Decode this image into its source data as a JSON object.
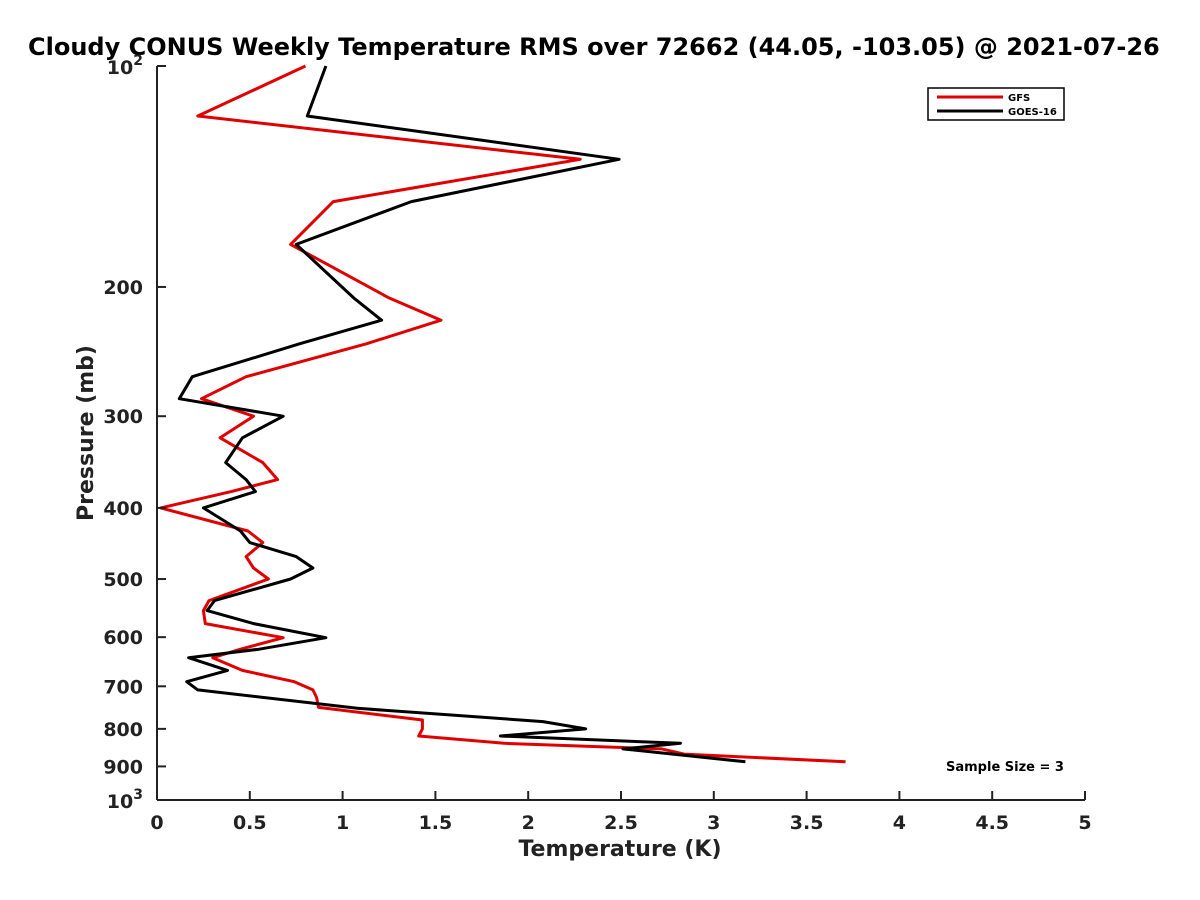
{
  "chart_data": {
    "type": "line",
    "title": "Cloudy CONUS Weekly Temperature RMS over 72662 (44.05, -103.05) @ 2021-07-26",
    "xlabel": "Temperature (K)",
    "ylabel": "Pressure (mb)",
    "xlim": [
      0,
      5
    ],
    "ylim": [
      100,
      1000
    ],
    "yscale": "log",
    "y_reversed": true,
    "xticks": [
      "0",
      "0.5",
      "1",
      "1.5",
      "2",
      "2.5",
      "3",
      "3.5",
      "4",
      "4.5",
      "5"
    ],
    "yticks": [
      {
        "value": 100,
        "base": "10",
        "exp": "2"
      },
      {
        "value": 200,
        "label": "200"
      },
      {
        "value": 300,
        "label": "300"
      },
      {
        "value": 400,
        "label": "400"
      },
      {
        "value": 500,
        "label": "500"
      },
      {
        "value": 600,
        "label": "600"
      },
      {
        "value": 700,
        "label": "700"
      },
      {
        "value": 800,
        "label": "800"
      },
      {
        "value": 900,
        "label": "900"
      },
      {
        "value": 1000,
        "base": "10",
        "exp": "3"
      }
    ],
    "legend_position": "top-right",
    "series": [
      {
        "name": "GFS",
        "color": "#e00000",
        "points": [
          [
            0.8,
            100
          ],
          [
            0.22,
            117
          ],
          [
            2.28,
            134
          ],
          [
            0.95,
            153
          ],
          [
            0.72,
            175
          ],
          [
            1.25,
            207
          ],
          [
            1.53,
            222
          ],
          [
            1.13,
            239
          ],
          [
            0.48,
            265
          ],
          [
            0.24,
            284
          ],
          [
            0.52,
            300
          ],
          [
            0.34,
            321
          ],
          [
            0.57,
            347
          ],
          [
            0.65,
            366
          ],
          [
            0.4,
            380
          ],
          [
            0.02,
            400
          ],
          [
            0.49,
            430
          ],
          [
            0.57,
            446
          ],
          [
            0.48,
            466
          ],
          [
            0.52,
            483
          ],
          [
            0.6,
            500
          ],
          [
            0.28,
            535
          ],
          [
            0.25,
            552
          ],
          [
            0.26,
            575
          ],
          [
            0.68,
            601
          ],
          [
            0.45,
            623
          ],
          [
            0.3,
            640
          ],
          [
            0.46,
            666
          ],
          [
            0.74,
            690
          ],
          [
            0.84,
            708
          ],
          [
            0.86,
            725
          ],
          [
            0.87,
            748
          ],
          [
            1.43,
            778
          ],
          [
            1.43,
            800
          ],
          [
            1.41,
            818
          ],
          [
            1.87,
            837
          ],
          [
            2.72,
            852
          ],
          [
            2.84,
            866
          ],
          [
            3.71,
            887
          ]
        ]
      },
      {
        "name": "GOES-16",
        "color": "#000000",
        "points": [
          [
            0.91,
            100
          ],
          [
            0.81,
            117
          ],
          [
            2.49,
            134
          ],
          [
            1.37,
            153
          ],
          [
            0.75,
            175
          ],
          [
            1.06,
            207
          ],
          [
            1.21,
            222
          ],
          [
            0.77,
            239
          ],
          [
            0.19,
            265
          ],
          [
            0.12,
            284
          ],
          [
            0.68,
            300
          ],
          [
            0.46,
            321
          ],
          [
            0.37,
            347
          ],
          [
            0.48,
            366
          ],
          [
            0.53,
            380
          ],
          [
            0.25,
            400
          ],
          [
            0.45,
            430
          ],
          [
            0.5,
            446
          ],
          [
            0.75,
            466
          ],
          [
            0.84,
            483
          ],
          [
            0.72,
            500
          ],
          [
            0.31,
            535
          ],
          [
            0.27,
            552
          ],
          [
            0.52,
            575
          ],
          [
            0.91,
            601
          ],
          [
            0.55,
            623
          ],
          [
            0.17,
            640
          ],
          [
            0.38,
            666
          ],
          [
            0.16,
            690
          ],
          [
            0.22,
            708
          ],
          [
            1.08,
            750
          ],
          [
            2.08,
            782
          ],
          [
            2.31,
            800
          ],
          [
            1.85,
            818
          ],
          [
            2.82,
            837
          ],
          [
            2.51,
            852
          ],
          [
            3.17,
            887
          ]
        ]
      }
    ],
    "annotation": "Sample Size = 3"
  }
}
